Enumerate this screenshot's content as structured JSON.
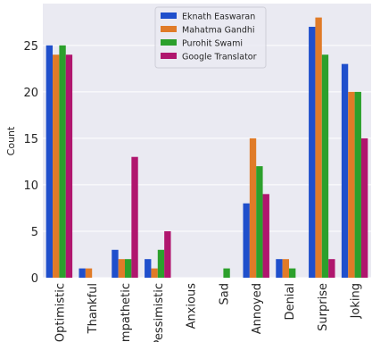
{
  "chart_data": {
    "type": "bar",
    "categories": [
      "Optimistic",
      "Thankful",
      "Empathetic",
      "Pessimistic",
      "Anxious",
      "Sad",
      "Annoyed",
      "Denial",
      "Surprise",
      "Joking"
    ],
    "series": [
      {
        "name": "Eknath Easwaran",
        "color": "#1f4fcc",
        "values": [
          25,
          1,
          3,
          2,
          0,
          0,
          8,
          2,
          27,
          23
        ]
      },
      {
        "name": "Mahatma Gandhi",
        "color": "#e07b28",
        "values": [
          24,
          1,
          2,
          1,
          0,
          0,
          15,
          2,
          28,
          20
        ]
      },
      {
        "name": "Purohit Swami",
        "color": "#2ca02c",
        "values": [
          25,
          0,
          2,
          3,
          0,
          1,
          12,
          1,
          24,
          20
        ]
      },
      {
        "name": "Google Translator",
        "color": "#b0166e",
        "values": [
          24,
          0,
          13,
          5,
          0,
          0,
          9,
          0,
          2,
          15
        ]
      }
    ],
    "ylabel": "Count",
    "ylim": [
      0,
      29.5
    ],
    "yticks": [
      0,
      5,
      10,
      15,
      20,
      25
    ],
    "grid": true,
    "legend": "top-center",
    "background": "#eaeaf2"
  }
}
